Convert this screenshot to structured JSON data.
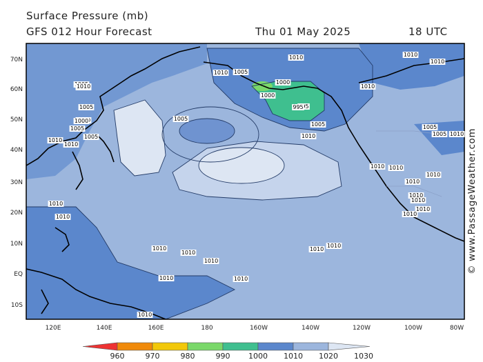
{
  "header": {
    "title": "Surface Pressure (mb)",
    "subtitle": "GFS 012 Hour Forecast",
    "date": "Thu 01 May 2025",
    "time": "18 UTC"
  },
  "credit": "© www.PassageWeather.com",
  "axes": {
    "lon_labels": [
      "120E",
      "140E",
      "160E",
      "180",
      "160W",
      "140W",
      "120W",
      "100W",
      "80W"
    ],
    "lat_labels": [
      "70N",
      "60N",
      "50N",
      "40N",
      "30N",
      "20N",
      "10N",
      "EQ",
      "10S"
    ]
  },
  "isobar_labels": [
    "1010",
    "1005",
    "1010",
    "1005",
    "1000",
    "995",
    "1000",
    "1000",
    "995",
    "1005",
    "1010",
    "1005",
    "1010",
    "1005",
    "1000",
    "1005",
    "1010",
    "1010",
    "1005",
    "1010",
    "1010",
    "1010",
    "1010",
    "1010",
    "1010",
    "1010",
    "1010",
    "1010",
    "1010",
    "1010",
    "1010",
    "1010",
    "1010",
    "1010",
    "1010",
    "1010",
    "1010",
    "1010",
    "1010",
    "1010",
    "1005",
    "1005",
    "1010",
    "1010"
  ],
  "legend": {
    "ticks": [
      "960",
      "970",
      "980",
      "990",
      "1000",
      "1010",
      "1020",
      "1030"
    ],
    "colors": [
      "#ee3333",
      "#f08a0a",
      "#f2c80a",
      "#7ad86a",
      "#3fbf8f",
      "#5b87cc",
      "#9cb6dd",
      "#dde6f3"
    ]
  },
  "colors": {
    "land": "#5b87cc",
    "sea_mid": "#9cb6dd",
    "high": "#dde6f3",
    "low": "#3fbf8f",
    "deep_low": "#7ad86a"
  }
}
